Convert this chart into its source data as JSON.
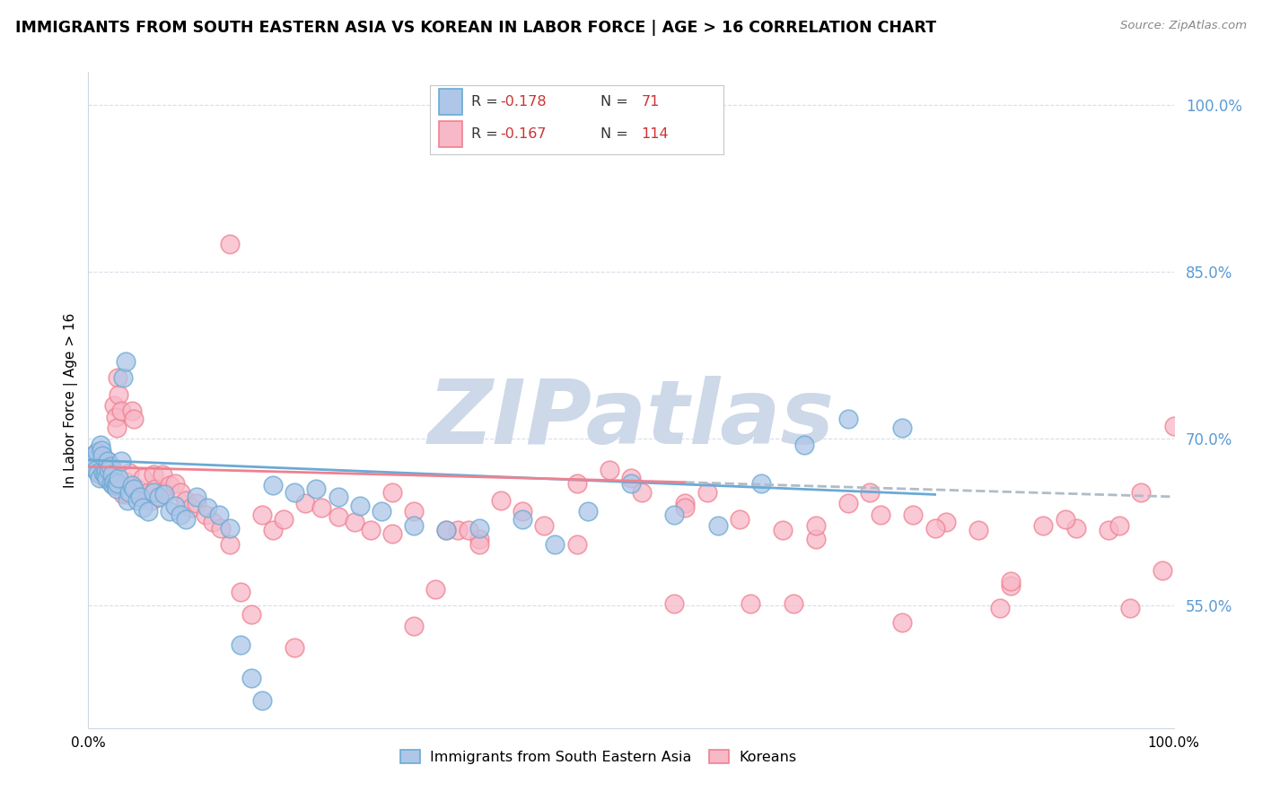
{
  "title": "IMMIGRANTS FROM SOUTH EASTERN ASIA VS KOREAN IN LABOR FORCE | AGE > 16 CORRELATION CHART",
  "source": "Source: ZipAtlas.com",
  "ylabel": "In Labor Force | Age > 16",
  "ytick_vals": [
    0.55,
    0.7,
    0.85,
    1.0
  ],
  "ytick_labels": [
    "55.0%",
    "70.0%",
    "85.0%",
    "100.0%"
  ],
  "xlim": [
    0.0,
    1.0
  ],
  "ylim": [
    0.44,
    1.03
  ],
  "color_blue_fill": "#aec6e8",
  "color_blue_edge": "#6aaad4",
  "color_pink_fill": "#f7b8c8",
  "color_pink_edge": "#f08090",
  "color_blue_line": "#6aaad4",
  "color_pink_line": "#f08090",
  "color_dashed": "#b0bcc8",
  "color_watermark": "#cdd8e8",
  "color_grid": "#d8dfe8",
  "background": "#ffffff",
  "legend_r1": "R = -0.178",
  "legend_n1": "71",
  "legend_r2": "R = -0.167",
  "legend_n2": "114",
  "blue_trend_start": 0.681,
  "blue_trend_end": 0.65,
  "blue_trend_x_end": 0.78,
  "pink_trend_start": 0.675,
  "pink_trend_end_solid": 0.661,
  "pink_trend_x_solid_end": 0.55,
  "pink_trend_end_dash": 0.648,
  "pink_trend_x_dash_end": 1.0,
  "blue_x": [
    0.002,
    0.003,
    0.004,
    0.005,
    0.006,
    0.007,
    0.008,
    0.009,
    0.01,
    0.011,
    0.012,
    0.013,
    0.014,
    0.015,
    0.016,
    0.017,
    0.018,
    0.019,
    0.02,
    0.021,
    0.022,
    0.023,
    0.024,
    0.025,
    0.026,
    0.027,
    0.028,
    0.03,
    0.032,
    0.034,
    0.036,
    0.038,
    0.04,
    0.042,
    0.045,
    0.048,
    0.05,
    0.055,
    0.06,
    0.065,
    0.07,
    0.075,
    0.08,
    0.085,
    0.09,
    0.1,
    0.11,
    0.12,
    0.13,
    0.14,
    0.15,
    0.16,
    0.17,
    0.19,
    0.21,
    0.23,
    0.25,
    0.27,
    0.3,
    0.33,
    0.36,
    0.4,
    0.43,
    0.46,
    0.5,
    0.54,
    0.58,
    0.62,
    0.66,
    0.7,
    0.75
  ],
  "blue_y": [
    0.675,
    0.68,
    0.685,
    0.678,
    0.682,
    0.672,
    0.688,
    0.67,
    0.665,
    0.695,
    0.69,
    0.685,
    0.67,
    0.668,
    0.672,
    0.665,
    0.68,
    0.672,
    0.675,
    0.66,
    0.668,
    0.658,
    0.662,
    0.658,
    0.655,
    0.66,
    0.665,
    0.68,
    0.755,
    0.77,
    0.645,
    0.652,
    0.658,
    0.655,
    0.645,
    0.648,
    0.638,
    0.635,
    0.652,
    0.648,
    0.65,
    0.635,
    0.64,
    0.632,
    0.628,
    0.648,
    0.638,
    0.632,
    0.62,
    0.515,
    0.485,
    0.465,
    0.658,
    0.652,
    0.655,
    0.648,
    0.64,
    0.635,
    0.622,
    0.618,
    0.62,
    0.628,
    0.605,
    0.635,
    0.66,
    0.632,
    0.622,
    0.66,
    0.695,
    0.718,
    0.71
  ],
  "pink_x": [
    0.002,
    0.003,
    0.004,
    0.005,
    0.006,
    0.007,
    0.008,
    0.009,
    0.01,
    0.011,
    0.012,
    0.013,
    0.014,
    0.015,
    0.016,
    0.017,
    0.018,
    0.019,
    0.02,
    0.021,
    0.022,
    0.023,
    0.024,
    0.025,
    0.026,
    0.027,
    0.028,
    0.03,
    0.032,
    0.034,
    0.036,
    0.038,
    0.04,
    0.042,
    0.045,
    0.048,
    0.05,
    0.055,
    0.058,
    0.06,
    0.062,
    0.065,
    0.068,
    0.07,
    0.075,
    0.08,
    0.085,
    0.09,
    0.095,
    0.1,
    0.108,
    0.115,
    0.122,
    0.13,
    0.14,
    0.15,
    0.16,
    0.17,
    0.18,
    0.19,
    0.2,
    0.215,
    0.23,
    0.245,
    0.26,
    0.28,
    0.3,
    0.32,
    0.34,
    0.36,
    0.38,
    0.4,
    0.42,
    0.45,
    0.48,
    0.51,
    0.54,
    0.57,
    0.6,
    0.64,
    0.67,
    0.7,
    0.73,
    0.76,
    0.79,
    0.82,
    0.85,
    0.88,
    0.91,
    0.94,
    0.97,
    1.0,
    0.3,
    0.33,
    0.36,
    0.13,
    0.5,
    0.55,
    0.61,
    0.67,
    0.72,
    0.78,
    0.84,
    0.9,
    0.96,
    0.35,
    0.45,
    0.55,
    0.65,
    0.75,
    0.85,
    0.95,
    0.99,
    0.28
  ],
  "pink_y": [
    0.678,
    0.682,
    0.675,
    0.68,
    0.685,
    0.672,
    0.688,
    0.67,
    0.668,
    0.675,
    0.68,
    0.685,
    0.67,
    0.665,
    0.672,
    0.665,
    0.68,
    0.672,
    0.67,
    0.675,
    0.66,
    0.668,
    0.73,
    0.72,
    0.71,
    0.755,
    0.74,
    0.725,
    0.65,
    0.662,
    0.65,
    0.67,
    0.725,
    0.718,
    0.655,
    0.648,
    0.665,
    0.652,
    0.645,
    0.668,
    0.655,
    0.648,
    0.668,
    0.652,
    0.658,
    0.66,
    0.652,
    0.645,
    0.638,
    0.642,
    0.632,
    0.625,
    0.62,
    0.875,
    0.562,
    0.542,
    0.632,
    0.618,
    0.628,
    0.512,
    0.642,
    0.638,
    0.63,
    0.625,
    0.618,
    0.615,
    0.635,
    0.565,
    0.618,
    0.61,
    0.645,
    0.635,
    0.622,
    0.66,
    0.672,
    0.652,
    0.552,
    0.652,
    0.628,
    0.618,
    0.61,
    0.642,
    0.632,
    0.632,
    0.625,
    0.618,
    0.568,
    0.622,
    0.62,
    0.618,
    0.652,
    0.712,
    0.532,
    0.618,
    0.605,
    0.605,
    0.665,
    0.642,
    0.552,
    0.622,
    0.652,
    0.62,
    0.548,
    0.628,
    0.548,
    0.618,
    0.605,
    0.638,
    0.552,
    0.535,
    0.572,
    0.622,
    0.582,
    0.652
  ]
}
